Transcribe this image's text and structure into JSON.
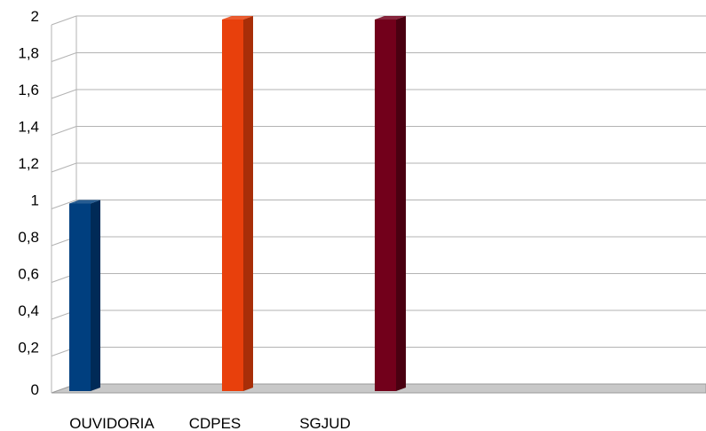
{
  "chart_data": {
    "type": "bar",
    "categories": [
      "OUVIDORIA",
      "CDPES",
      "SGJUD"
    ],
    "values": [
      1,
      2,
      2
    ],
    "title": "",
    "xlabel": "",
    "ylabel": "",
    "ylim": [
      0,
      2
    ],
    "yticks": [
      "0",
      "0,2",
      "0,4",
      "0,6",
      "0,8",
      "1",
      "1,2",
      "1,4",
      "1,6",
      "1,8",
      "2"
    ],
    "grid": true,
    "legend": "none",
    "three_d": true,
    "bar_colors": [
      "#003f7f",
      "#e8400c",
      "#72001b"
    ],
    "bar_side_colors": [
      "#002a57",
      "#a82e08",
      "#4a0011"
    ],
    "floor_color": "#c8c8c8",
    "grid_color": "#b3b3b3"
  }
}
